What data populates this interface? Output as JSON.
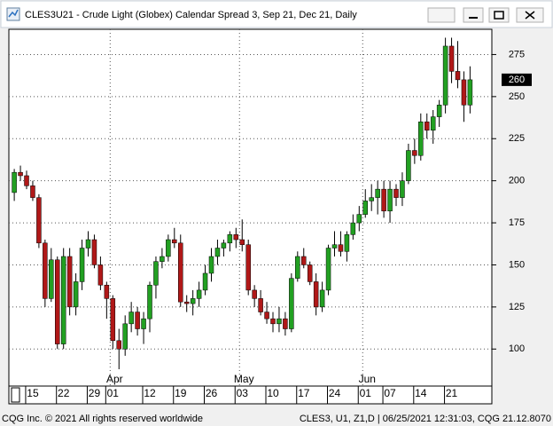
{
  "chart_data": {
    "type": "candlestick",
    "title": "CLES3U21 - Crude Light (Globex) Calendar Spread 3, Sep 21, Dec 21, Daily",
    "footer_left": "CQG Inc. © 2021 All rights reserved worldwide",
    "footer_right": "CLES3, U1, Z1,D | 06/25/2021 12:31:03, CQG 21.12.8070",
    "categories": [
      null,
      null,
      null,
      "15",
      null,
      null,
      null,
      null,
      "22",
      null,
      null,
      null,
      null,
      "29",
      null,
      null,
      "01",
      null,
      null,
      null,
      null,
      null,
      "12",
      null,
      null,
      null,
      null,
      "19",
      null,
      null,
      null,
      null,
      "26",
      null,
      null,
      null,
      null,
      "03",
      null,
      null,
      null,
      null,
      "10",
      null,
      null,
      null,
      null,
      "17",
      null,
      null,
      null,
      null,
      "24",
      null,
      null,
      null,
      null,
      "01",
      null,
      null,
      null,
      "07",
      null,
      null,
      null,
      null,
      "14",
      null,
      null,
      null,
      null,
      "21",
      null,
      null,
      null
    ],
    "months": [
      null,
      null,
      null,
      null,
      null,
      null,
      null,
      null,
      null,
      null,
      null,
      null,
      null,
      null,
      null,
      null,
      "Apr",
      null,
      null,
      null,
      null,
      null,
      null,
      null,
      null,
      null,
      null,
      null,
      null,
      null,
      null,
      null,
      null,
      null,
      null,
      null,
      null,
      "May",
      null,
      null,
      null,
      null,
      null,
      null,
      null,
      null,
      null,
      null,
      null,
      null,
      null,
      null,
      null,
      null,
      null,
      null,
      null,
      "Jun",
      null,
      null,
      null,
      null,
      null,
      null,
      null,
      null,
      null,
      null,
      null,
      null,
      null,
      null,
      null,
      null,
      null
    ],
    "open": [
      193,
      205,
      203,
      197,
      190,
      163,
      130,
      153,
      103,
      155,
      125,
      140,
      160,
      165,
      150,
      138,
      130,
      105,
      100,
      115,
      122,
      112,
      118,
      138,
      152,
      155,
      165,
      163,
      128,
      127,
      130,
      135,
      145,
      155,
      160,
      163,
      168,
      165,
      162,
      135,
      130,
      122,
      118,
      115,
      118,
      112,
      142,
      155,
      150,
      140,
      125,
      135,
      160,
      162,
      158,
      168,
      175,
      180,
      188,
      190,
      195,
      182,
      195,
      190,
      200,
      218,
      215,
      235,
      230,
      238,
      245,
      280,
      265,
      260,
      245
    ],
    "high": [
      207,
      209,
      206,
      200,
      192,
      165,
      160,
      155,
      160,
      160,
      145,
      165,
      170,
      168,
      155,
      140,
      132,
      112,
      120,
      128,
      125,
      122,
      140,
      155,
      160,
      168,
      172,
      168,
      132,
      135,
      140,
      150,
      160,
      165,
      165,
      170,
      172,
      177,
      165,
      138,
      135,
      128,
      122,
      125,
      122,
      145,
      158,
      160,
      152,
      145,
      140,
      162,
      170,
      170,
      170,
      180,
      185,
      195,
      198,
      200,
      200,
      200,
      198,
      205,
      222,
      225,
      240,
      240,
      242,
      248,
      285,
      285,
      283,
      265,
      268
    ],
    "low": [
      188,
      200,
      195,
      188,
      160,
      125,
      128,
      100,
      100,
      120,
      120,
      135,
      155,
      148,
      135,
      118,
      100,
      88,
      96,
      110,
      108,
      103,
      110,
      130,
      148,
      152,
      160,
      125,
      122,
      120,
      125,
      132,
      140,
      150,
      155,
      158,
      160,
      158,
      132,
      125,
      120,
      115,
      110,
      110,
      108,
      110,
      140,
      148,
      138,
      120,
      122,
      132,
      155,
      155,
      152,
      165,
      170,
      178,
      182,
      180,
      178,
      175,
      185,
      185,
      198,
      210,
      212,
      225,
      222,
      232,
      240,
      258,
      255,
      235,
      240
    ],
    "close": [
      205,
      203,
      197,
      190,
      163,
      130,
      153,
      103,
      155,
      125,
      140,
      160,
      165,
      150,
      138,
      130,
      105,
      100,
      115,
      122,
      112,
      118,
      138,
      152,
      155,
      165,
      163,
      128,
      127,
      130,
      135,
      145,
      155,
      160,
      163,
      168,
      165,
      162,
      135,
      130,
      122,
      118,
      115,
      118,
      112,
      142,
      155,
      150,
      140,
      125,
      135,
      160,
      162,
      158,
      168,
      175,
      180,
      188,
      190,
      195,
      182,
      195,
      190,
      200,
      218,
      215,
      235,
      230,
      238,
      245,
      280,
      265,
      260,
      245,
      260
    ],
    "up_color": "#22a022",
    "down_color": "#b01818",
    "ylim": [
      78,
      290
    ],
    "yticks": [
      100,
      125,
      150,
      175,
      200,
      225,
      250,
      275
    ],
    "grid": true
  }
}
